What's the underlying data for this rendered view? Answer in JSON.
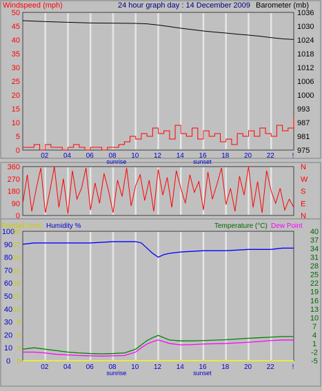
{
  "header": {
    "left_label": "Windspeed (mph)",
    "title": "24 hour graph day : 14 December 2009",
    "right_label": "Barometer (mb)"
  },
  "time_axis": {
    "ticks": [
      "02",
      "04",
      "06",
      "08",
      "10",
      "12",
      "14",
      "16",
      "18",
      "20",
      "22",
      "!"
    ],
    "sunrise_label": "sunrise",
    "sunset_label": "sunset",
    "sunrise_hour": 8.3,
    "sunset_hour": 15.9
  },
  "colors": {
    "background": "#c0c0c0",
    "plot_bg": "#c0c0c0",
    "grid": "#e6e6e6",
    "wind": "#ff0000",
    "gust_marker": "#008000",
    "barometer": "#000000",
    "direction": "#ff0000",
    "humidity": "#0000ff",
    "temperature": "#008000",
    "dew_point": "#ff00ff",
    "rainfall": "#ffff00",
    "axis_text_blue": "#0000cc",
    "axis_text_green": "#006600",
    "axis_text_yellow": "#cccc00"
  },
  "chart_data": [
    {
      "type": "line",
      "name": "wind-barometer",
      "x_range": [
        0,
        24
      ],
      "left_axis": {
        "label": "Windspeed (mph)",
        "ticks": [
          0,
          5,
          10,
          15,
          20,
          25,
          30,
          35,
          40,
          45,
          50
        ],
        "ylim": [
          0,
          50
        ]
      },
      "right_axis": {
        "label": "Barometer (mb)",
        "ticks": [
          975,
          981,
          987,
          993,
          1000,
          1006,
          1012,
          1018,
          1024,
          1030,
          1036
        ],
        "ylim": [
          975,
          1036
        ]
      },
      "series": [
        {
          "name": "Barometer",
          "axis": "right",
          "x": [
            0,
            2,
            4,
            6,
            8,
            10,
            11,
            12,
            13,
            14,
            15,
            16,
            17,
            18,
            19,
            20,
            21,
            22,
            23,
            24
          ],
          "values": [
            1032.4,
            1032,
            1031.7,
            1031.4,
            1031.3,
            1031.2,
            1031,
            1030.5,
            1029.8,
            1029.1,
            1028.5,
            1027.9,
            1027.4,
            1027,
            1026.5,
            1026.1,
            1025.6,
            1025,
            1024.5,
            1024.2
          ]
        },
        {
          "name": "Windspeed",
          "axis": "left",
          "x": [
            0,
            0.5,
            1,
            1.5,
            2,
            2.5,
            3,
            3.5,
            4,
            4.5,
            5,
            5.5,
            6,
            6.5,
            7,
            7.5,
            8,
            8.5,
            9,
            9.5,
            10,
            10.5,
            11,
            11.5,
            12,
            12.5,
            13,
            13.5,
            14,
            14.5,
            15,
            15.5,
            16,
            16.5,
            17,
            17.5,
            18,
            18.5,
            19,
            19.5,
            20,
            20.5,
            21,
            21.5,
            22,
            22.5,
            23,
            23.5,
            24
          ],
          "values": [
            1,
            1,
            2,
            0,
            2,
            1,
            1,
            0,
            1,
            2,
            1,
            0,
            1,
            1,
            0,
            1,
            1,
            2,
            3,
            5,
            4,
            6,
            5,
            8,
            6,
            7,
            4,
            9,
            6,
            5,
            8,
            4,
            7,
            5,
            6,
            3,
            4,
            2,
            6,
            5,
            7,
            5,
            8,
            6,
            5,
            9,
            7,
            8,
            12
          ]
        }
      ]
    },
    {
      "type": "line",
      "name": "wind-direction",
      "x_range": [
        0,
        24
      ],
      "left_axis": {
        "ticks": [
          0,
          90,
          180,
          270,
          360
        ],
        "ylim": [
          0,
          360
        ]
      },
      "right_axis": {
        "ticks": [
          "N",
          "E",
          "S",
          "W",
          "N"
        ]
      },
      "series": [
        {
          "name": "Direction",
          "x": [
            0,
            0.4,
            0.8,
            1.2,
            1.6,
            2,
            2.4,
            2.8,
            3.2,
            3.6,
            4,
            4.4,
            4.8,
            5.2,
            5.6,
            6,
            6.4,
            6.8,
            7.2,
            7.6,
            8,
            8.4,
            8.8,
            9.2,
            9.6,
            10,
            10.4,
            10.8,
            11.2,
            11.6,
            12,
            12.4,
            12.8,
            13.2,
            13.6,
            14,
            14.4,
            14.8,
            15.2,
            15.6,
            16,
            16.4,
            16.8,
            17.2,
            17.6,
            18,
            18.4,
            18.8,
            19.2,
            19.6,
            20,
            20.4,
            20.8,
            21.2,
            21.6,
            22,
            22.4,
            22.8,
            23.2,
            23.6,
            24
          ],
          "values": [
            90,
            300,
            30,
            200,
            350,
            20,
            180,
            360,
            60,
            270,
            10,
            330,
            120,
            200,
            350,
            40,
            240,
            90,
            310,
            180,
            20,
            260,
            140,
            350,
            70,
            220,
            300,
            110,
            260,
            30,
            340,
            150,
            280,
            60,
            330,
            200,
            90,
            300,
            170,
            250,
            40,
            320,
            120,
            230,
            350,
            80,
            200,
            30,
            290,
            150,
            360,
            60,
            250,
            20,
            330,
            180,
            90,
            200,
            40,
            120,
            60
          ]
        }
      ]
    },
    {
      "type": "line",
      "name": "temp-humidity",
      "x_range": [
        0,
        24
      ],
      "left_axis": {
        "label": "Humidity %",
        "ticks": [
          0,
          10,
          20,
          30,
          40,
          50,
          60,
          70,
          80,
          90,
          100
        ],
        "ylim": [
          0,
          100
        ]
      },
      "left_axis_rain": {
        "label": "Rainfall (mm)",
        "ticks": [
          0,
          3,
          6,
          9,
          12,
          15,
          18,
          21,
          24,
          27,
          30
        ]
      },
      "right_axis": {
        "label": "Temperature (°C)",
        "ticks": [
          -5,
          -2,
          1,
          4,
          7,
          10,
          13,
          16,
          19,
          22,
          25,
          28,
          31,
          34,
          37,
          40
        ],
        "ylim": [
          -5,
          40
        ]
      },
      "legend": [
        "Temperature (°C)",
        "Dew Point"
      ],
      "series": [
        {
          "name": "Humidity %",
          "axis": "left",
          "x": [
            0,
            1,
            2,
            4,
            6,
            8,
            9,
            10,
            10.5,
            11,
            11.5,
            12,
            12.5,
            13,
            14,
            16,
            18,
            20,
            22,
            23,
            24
          ],
          "values": [
            90,
            91,
            91,
            91,
            91,
            92,
            92,
            92,
            91,
            87,
            83,
            80,
            82,
            83,
            84,
            85,
            85,
            86,
            86,
            87,
            87
          ]
        },
        {
          "name": "Temperature (°C)",
          "axis": "right",
          "x": [
            0,
            1,
            2,
            3,
            4,
            5,
            6,
            7,
            8,
            9,
            10,
            10.5,
            11,
            11.5,
            12,
            12.5,
            13,
            14,
            15,
            16,
            18,
            20,
            22,
            23,
            24
          ],
          "values": [
            -1,
            -0.5,
            -1,
            -1.5,
            -2,
            -2.3,
            -2.5,
            -2.6,
            -2.5,
            -2.3,
            -1,
            0.5,
            2,
            3,
            3.8,
            3,
            2.2,
            1.9,
            1.9,
            2,
            2.3,
            2.8,
            3.2,
            3.4,
            3.4
          ]
        },
        {
          "name": "Dew Point",
          "axis": "right",
          "x": [
            0,
            1,
            2,
            3,
            4,
            5,
            6,
            7,
            8,
            9,
            10,
            10.5,
            11,
            11.5,
            12,
            12.5,
            13,
            14,
            15,
            16,
            18,
            20,
            22,
            23,
            24
          ],
          "values": [
            -2,
            -2,
            -2.3,
            -2.8,
            -3,
            -3.2,
            -3.3,
            -3.4,
            -3.3,
            -3.2,
            -2,
            -0.5,
            0.8,
            1.6,
            2.2,
            1.6,
            1,
            0.5,
            0.6,
            0.8,
            1,
            1.4,
            2,
            2.2,
            2.2
          ]
        },
        {
          "name": "Rainfall",
          "axis": "left",
          "x": [
            0,
            24
          ],
          "values": [
            0,
            0
          ]
        }
      ]
    }
  ]
}
